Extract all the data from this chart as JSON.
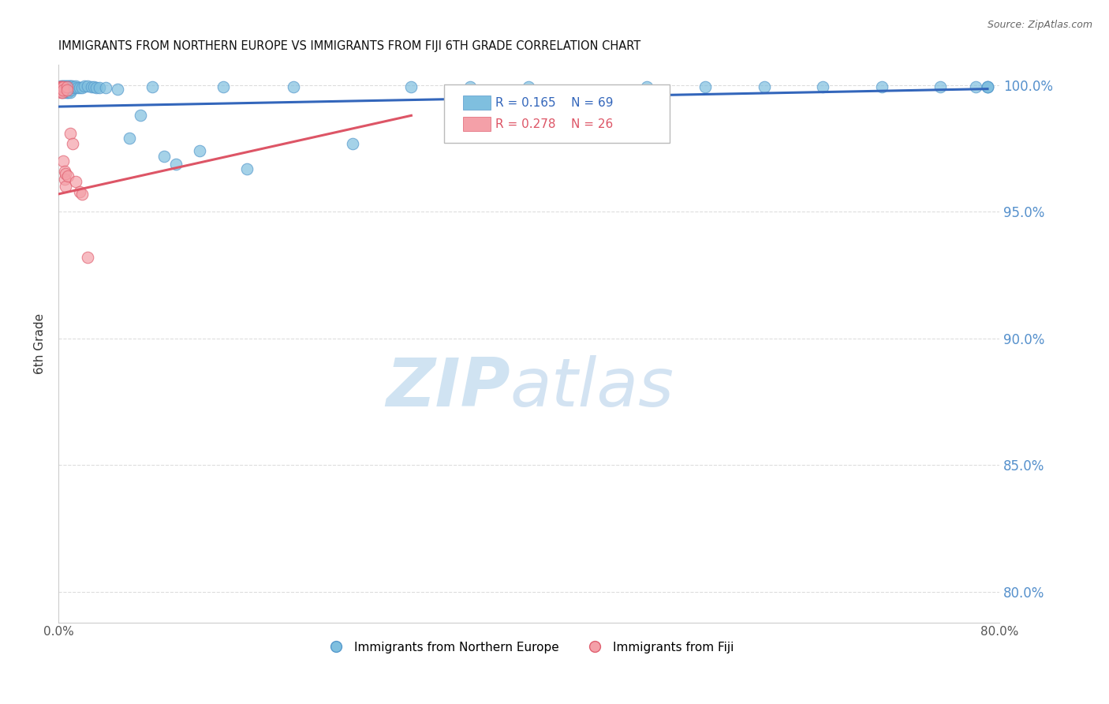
{
  "title": "IMMIGRANTS FROM NORTHERN EUROPE VS IMMIGRANTS FROM FIJI 6TH GRADE CORRELATION CHART",
  "source": "Source: ZipAtlas.com",
  "ylabel": "6th Grade",
  "y_tick_labels": [
    "80.0%",
    "85.0%",
    "90.0%",
    "95.0%",
    "100.0%"
  ],
  "y_tick_values": [
    0.8,
    0.85,
    0.9,
    0.95,
    1.0
  ],
  "x_min": 0.0,
  "x_max": 0.8,
  "y_min": 0.788,
  "y_max": 1.008,
  "blue_color": "#7fbfdf",
  "pink_color": "#f4a0a8",
  "blue_edge_color": "#5599cc",
  "pink_edge_color": "#e06070",
  "blue_line_color": "#3366bb",
  "pink_line_color": "#dd5566",
  "legend_blue_R": "0.165",
  "legend_blue_N": "69",
  "legend_pink_R": "0.278",
  "legend_pink_N": "26",
  "blue_points_x": [
    0.001,
    0.001,
    0.002,
    0.002,
    0.002,
    0.003,
    0.003,
    0.003,
    0.003,
    0.004,
    0.004,
    0.004,
    0.005,
    0.005,
    0.005,
    0.005,
    0.006,
    0.006,
    0.007,
    0.007,
    0.007,
    0.008,
    0.008,
    0.008,
    0.009,
    0.009,
    0.01,
    0.01,
    0.01,
    0.011,
    0.011,
    0.012,
    0.013,
    0.014,
    0.015,
    0.016,
    0.018,
    0.02,
    0.022,
    0.025,
    0.028,
    0.03,
    0.032,
    0.035,
    0.04,
    0.05,
    0.06,
    0.07,
    0.08,
    0.09,
    0.1,
    0.12,
    0.14,
    0.16,
    0.2,
    0.25,
    0.3,
    0.35,
    0.4,
    0.5,
    0.55,
    0.6,
    0.65,
    0.7,
    0.75,
    0.78,
    0.79,
    0.79,
    0.79
  ],
  "blue_points_y": [
    0.999,
    0.998,
    0.9995,
    0.999,
    0.998,
    0.9995,
    0.999,
    0.998,
    0.997,
    0.9995,
    0.999,
    0.998,
    0.9995,
    0.999,
    0.998,
    0.997,
    0.9995,
    0.999,
    0.9995,
    0.999,
    0.997,
    0.9995,
    0.999,
    0.997,
    0.9995,
    0.998,
    0.9995,
    0.999,
    0.997,
    0.9995,
    0.998,
    0.9995,
    0.999,
    0.999,
    0.9995,
    0.999,
    0.999,
    0.999,
    0.9995,
    0.9995,
    0.9993,
    0.9992,
    0.999,
    0.999,
    0.999,
    0.9985,
    0.979,
    0.988,
    0.9994,
    0.972,
    0.9688,
    0.974,
    0.9994,
    0.967,
    0.9994,
    0.977,
    0.9994,
    0.9994,
    0.9994,
    0.9994,
    0.9994,
    0.9994,
    0.9994,
    0.9994,
    0.9994,
    0.9994,
    0.9994,
    0.9994,
    0.9994
  ],
  "pink_points_x": [
    0.001,
    0.001,
    0.001,
    0.002,
    0.002,
    0.002,
    0.002,
    0.003,
    0.003,
    0.003,
    0.004,
    0.004,
    0.004,
    0.005,
    0.005,
    0.006,
    0.006,
    0.007,
    0.007,
    0.008,
    0.01,
    0.012,
    0.015,
    0.018,
    0.02,
    0.025
  ],
  "pink_points_y": [
    0.9994,
    0.999,
    0.998,
    0.9994,
    0.999,
    0.998,
    0.997,
    0.9994,
    0.999,
    0.997,
    0.9994,
    0.998,
    0.97,
    0.966,
    0.963,
    0.965,
    0.96,
    0.9994,
    0.998,
    0.964,
    0.981,
    0.977,
    0.962,
    0.958,
    0.957,
    0.932
  ],
  "blue_trend_x0": 0.0,
  "blue_trend_x1": 0.79,
  "blue_trend_y0": 0.9915,
  "blue_trend_y1": 0.9985,
  "pink_trend_x0": 0.0,
  "pink_trend_x1": 0.3,
  "pink_trend_y0": 0.957,
  "pink_trend_y1": 0.988,
  "dashed_line_y": 1.0,
  "grid_color": "#dddddd",
  "spine_color": "#cccccc"
}
